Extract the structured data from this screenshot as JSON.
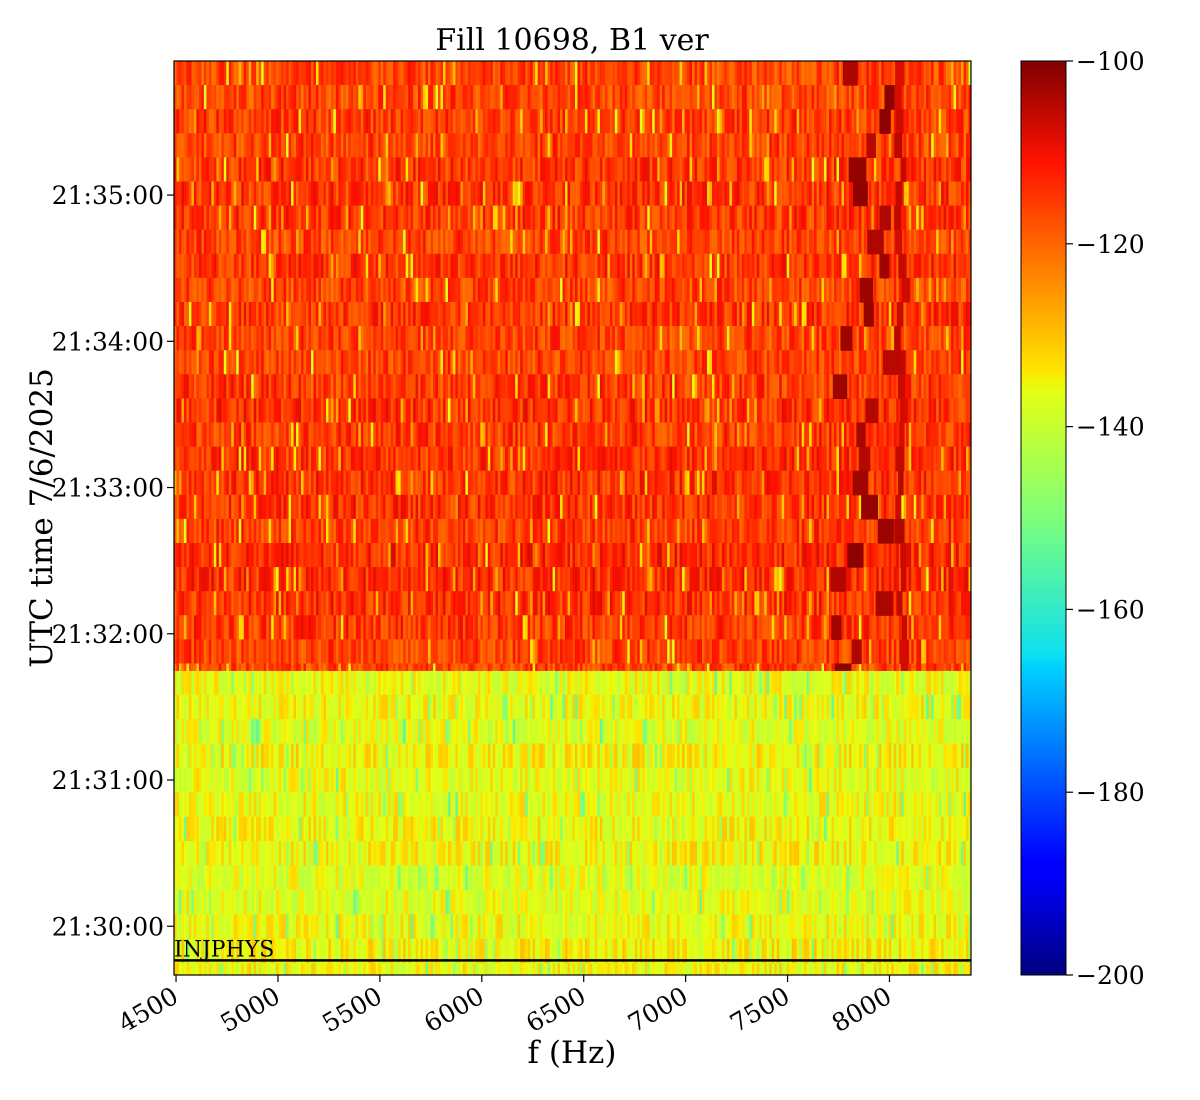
{
  "chart_data": {
    "type": "heatmap",
    "title": "Fill 10698, B1 ver",
    "xlabel": "f (Hz)",
    "ylabel": "UTC time 7/6/2025",
    "xlim": [
      4490,
      8400
    ],
    "ylim": [
      "21:29:40",
      "21:35:55"
    ],
    "x_ticks": [
      4500,
      5000,
      5500,
      6000,
      6500,
      7000,
      7500,
      8000
    ],
    "x_tick_labels": [
      "4500",
      "5000",
      "5500",
      "6000",
      "6500",
      "7000",
      "7500",
      "8000"
    ],
    "y_ticks": [
      "21:30:00",
      "21:31:00",
      "21:32:00",
      "21:33:00",
      "21:34:00",
      "21:35:00"
    ],
    "colorbar": {
      "colormap": "jet",
      "range": [
        -200,
        -100
      ],
      "ticks": [
        -100,
        -120,
        -140,
        -160,
        -180,
        -200
      ],
      "tick_labels": [
        "−100",
        "−120",
        "−140",
        "−160",
        "−180",
        "−200"
      ]
    },
    "regions": [
      {
        "time_from": "21:29:40",
        "time_to": "21:31:45",
        "level_db": -136
      },
      {
        "time_from": "21:31:45",
        "time_to": "21:35:55",
        "level_db": -115
      }
    ],
    "resonance_line": {
      "f_range_hz": [
        7700,
        8060
      ],
      "level_db": -103
    },
    "annotations": [
      {
        "text": "INJPHYS",
        "time": "21:29:46",
        "line_color": "#000000"
      }
    ]
  }
}
